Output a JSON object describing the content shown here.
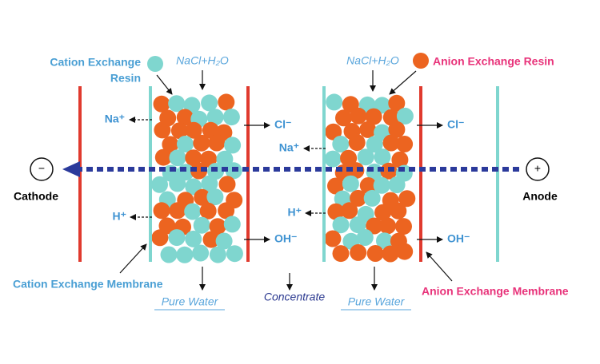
{
  "cation_resin_label": [
    "Cation Exchange",
    "Resin"
  ],
  "anion_resin_label": "Anion Exchange Resin",
  "feed_left": "NaCl+H₂O",
  "feed_right": "NaCl+H₂O",
  "ions": {
    "left_na": "Na⁺",
    "left_cl": "Cl⁻",
    "left_h": "H⁺",
    "left_oh": "OH⁻",
    "right_na": "Na⁺",
    "right_cl": "Cl⁻",
    "right_h": "H⁺",
    "right_oh": "OH⁻"
  },
  "cathode": {
    "symbol": "−",
    "label": "Cathode"
  },
  "anode": {
    "symbol": "+",
    "label": "Anode"
  },
  "cation_membrane_label": "Cation Exchange Membrane",
  "anion_membrane_label": "Anion Exchange Membrane",
  "outputs": {
    "left": "Pure Water",
    "middle": "Concentrate",
    "right": "Pure Water"
  }
}
